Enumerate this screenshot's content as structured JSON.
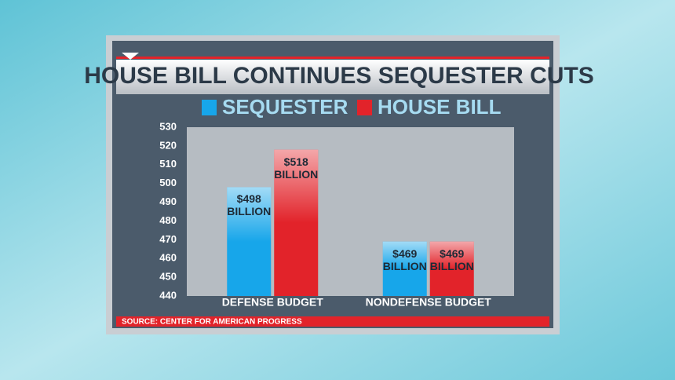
{
  "chart_data": {
    "type": "bar",
    "title": "HOUSE BILL CONTINUES SEQUESTER CUTS",
    "categories": [
      "DEFENSE BUDGET",
      "NONDEFENSE BUDGET"
    ],
    "series": [
      {
        "name": "SEQUESTER",
        "color": "#17a6ea",
        "values": [
          498,
          469
        ],
        "value_labels": [
          "$498 BILLION",
          "$469 BILLION"
        ]
      },
      {
        "name": "HOUSE BILL",
        "color": "#e2232a",
        "values": [
          518,
          469
        ],
        "value_labels": [
          "$518 BILLION",
          "$469 BILLION"
        ]
      }
    ],
    "ylim": [
      440,
      530
    ],
    "yticks": [
      440,
      450,
      460,
      470,
      480,
      490,
      500,
      510,
      520,
      530
    ],
    "source": "SOURCE: CENTER FOR AMERICAN PROGRESS"
  }
}
